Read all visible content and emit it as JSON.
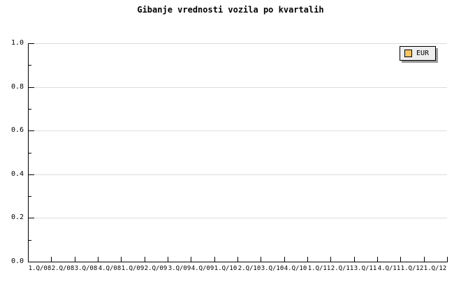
{
  "title": "Gibanje vrednosti vozila po kvartalih",
  "legend": {
    "items": [
      {
        "label": "EUR",
        "color": "#f7c45f"
      }
    ]
  },
  "colors": {
    "background": "#ffffff",
    "axis": "#000000",
    "gridline": "#dcdcdc",
    "text": "#000000",
    "legend_background": "#eeeeee",
    "legend_border": "#000000",
    "legend_shadow": "#999999",
    "series_eur": "#f7c45f"
  },
  "chart_data": {
    "type": "bar",
    "title": "Gibanje vrednosti vozila po kvartalih",
    "categories": [
      "1.Q/08",
      "2.Q/08",
      "3.Q/08",
      "4.Q/08",
      "1.Q/09",
      "2.Q/09",
      "3.Q/09",
      "4.Q/09",
      "1.Q/10",
      "2.Q/10",
      "3.Q/10",
      "4.Q/10",
      "1.Q/11",
      "2.Q/11",
      "3.Q/11",
      "4.Q/11",
      "1.Q/12",
      "1.Q/12"
    ],
    "series": [
      {
        "name": "EUR",
        "color": "#f7c45f",
        "values": []
      }
    ],
    "xlabel": "",
    "ylabel": "",
    "ylim": [
      0,
      1
    ],
    "y_tick_labels": [
      "0.0",
      "0.2",
      "0.4",
      "0.6",
      "0.8",
      "1.0"
    ],
    "y_minor_ticks": [
      0.1,
      0.3,
      0.5,
      0.7,
      0.9
    ],
    "grid": "horizontal-major",
    "legend_position": "top-right"
  }
}
